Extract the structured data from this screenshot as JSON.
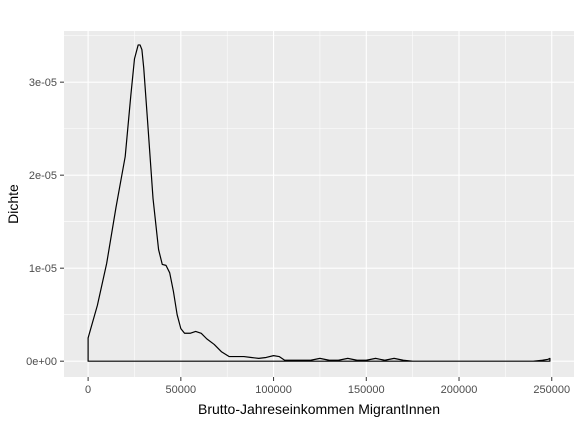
{
  "chart_data": {
    "type": "area",
    "subtype": "density",
    "title": "",
    "xlabel": "Brutto-Jahreseinkommen MigrantInnen",
    "ylabel": "Dichte",
    "xlim": [
      -13000,
      262000
    ],
    "ylim": [
      -1.7e-06,
      3.55e-05
    ],
    "x_ticks": [
      {
        "value": 0,
        "label": "0"
      },
      {
        "value": 50000,
        "label": "50000"
      },
      {
        "value": 100000,
        "label": "100000"
      },
      {
        "value": 150000,
        "label": "150000"
      },
      {
        "value": 200000,
        "label": "200000"
      },
      {
        "value": 250000,
        "label": "250000"
      }
    ],
    "y_ticks": [
      {
        "value": 0,
        "label": "0e+00"
      },
      {
        "value": 1e-05,
        "label": "1e-05"
      },
      {
        "value": 2e-05,
        "label": "2e-05"
      },
      {
        "value": 3e-05,
        "label": "3e-05"
      }
    ],
    "grid": true,
    "legend": "none",
    "colors": {
      "panel": "#ebebeb",
      "grid": "#ffffff",
      "line": "#000000",
      "fill": "none"
    },
    "series": [
      {
        "x": [
          0,
          0,
          5000,
          10000,
          15000,
          20000,
          23000,
          25000,
          27000,
          28000,
          29000,
          30000,
          32000,
          35000,
          38000,
          40000,
          42000,
          44000,
          46000,
          48000,
          50000,
          52000,
          55000,
          58000,
          61000,
          64000,
          68000,
          72000,
          76000,
          80000,
          84000,
          88000,
          92000,
          96000,
          100000,
          103000,
          106000,
          110000,
          115000,
          120000,
          125000,
          130000,
          135000,
          140000,
          145000,
          150000,
          155000,
          160000,
          165000,
          170000,
          175000,
          180000,
          190000,
          200000,
          210000,
          220000,
          230000,
          240000,
          245000,
          248000,
          249000,
          249000
        ],
        "y": [
          0,
          2.5e-06,
          6e-06,
          1.05e-05,
          1.65e-05,
          2.2e-05,
          2.85e-05,
          3.25e-05,
          3.4e-05,
          3.4e-05,
          3.35e-05,
          3.15e-05,
          2.6e-05,
          1.75e-05,
          1.2e-05,
          1.04e-05,
          1.03e-05,
          9.5e-06,
          7.5e-06,
          5e-06,
          3.5e-06,
          3e-06,
          3e-06,
          3.2e-06,
          3e-06,
          2.4e-06,
          1.8e-06,
          1e-06,
          5e-07,
          5e-07,
          5e-07,
          4e-07,
          3e-07,
          4e-07,
          6e-07,
          5e-07,
          1e-07,
          1e-07,
          1e-07,
          1e-07,
          3e-07,
          1e-07,
          1e-07,
          3e-07,
          1e-07,
          1e-07,
          3e-07,
          1e-07,
          3e-07,
          1e-07,
          0,
          0,
          0,
          0,
          0,
          0,
          0,
          0,
          1e-07,
          2e-07,
          3e-07,
          0
        ]
      }
    ]
  }
}
